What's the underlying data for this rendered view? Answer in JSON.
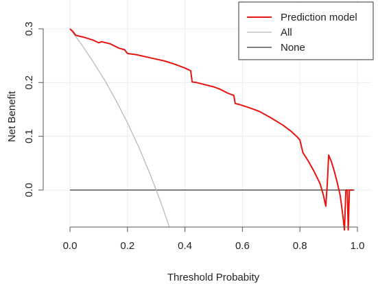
{
  "chart_data": {
    "type": "line",
    "xlabel": "Threshold Probabity",
    "ylabel": "Net Benefit",
    "xlim": [
      0,
      1
    ],
    "ylim": [
      -0.068,
      0.33
    ],
    "x_ticks": [
      0.0,
      0.2,
      0.4,
      0.6,
      0.8,
      1.0
    ],
    "x_tick_labels": [
      "0.0",
      "0.2",
      "0.4",
      "0.6",
      "0.8",
      "1.0"
    ],
    "y_ticks": [
      0.0,
      0.1,
      0.2,
      0.3
    ],
    "y_tick_labels": [
      "0.0",
      "0.1",
      "0.2",
      "0.3"
    ],
    "grid": true,
    "legend_position": "top-right",
    "series": [
      {
        "name": "Prediction model",
        "color": "#e8120f",
        "points": [
          [
            0.0,
            0.3
          ],
          [
            0.01,
            0.295
          ],
          [
            0.02,
            0.288
          ],
          [
            0.05,
            0.284
          ],
          [
            0.08,
            0.279
          ],
          [
            0.1,
            0.274
          ],
          [
            0.11,
            0.276
          ],
          [
            0.14,
            0.272
          ],
          [
            0.17,
            0.264
          ],
          [
            0.19,
            0.261
          ],
          [
            0.2,
            0.254
          ],
          [
            0.23,
            0.252
          ],
          [
            0.28,
            0.246
          ],
          [
            0.33,
            0.24
          ],
          [
            0.36,
            0.235
          ],
          [
            0.4,
            0.227
          ],
          [
            0.42,
            0.222
          ],
          [
            0.425,
            0.201
          ],
          [
            0.44,
            0.2
          ],
          [
            0.5,
            0.192
          ],
          [
            0.52,
            0.188
          ],
          [
            0.55,
            0.18
          ],
          [
            0.57,
            0.176
          ],
          [
            0.575,
            0.161
          ],
          [
            0.59,
            0.159
          ],
          [
            0.62,
            0.154
          ],
          [
            0.66,
            0.146
          ],
          [
            0.7,
            0.134
          ],
          [
            0.74,
            0.121
          ],
          [
            0.77,
            0.109
          ],
          [
            0.79,
            0.099
          ],
          [
            0.8,
            0.093
          ],
          [
            0.81,
            0.07
          ],
          [
            0.83,
            0.053
          ],
          [
            0.85,
            0.034
          ],
          [
            0.87,
            0.012
          ],
          [
            0.88,
            -0.006
          ],
          [
            0.89,
            -0.03
          ],
          [
            0.895,
            0.01
          ],
          [
            0.9,
            0.065
          ],
          [
            0.91,
            0.052
          ],
          [
            0.92,
            0.034
          ],
          [
            0.93,
            0.013
          ],
          [
            0.94,
            -0.01
          ],
          [
            0.95,
            -0.05
          ],
          [
            0.955,
            -0.075
          ],
          [
            0.96,
            0.0
          ],
          [
            0.965,
            0.0
          ],
          [
            0.968,
            -0.075
          ],
          [
            0.972,
            0.0
          ],
          [
            0.98,
            0.0
          ],
          [
            0.985,
            0.0
          ]
        ]
      },
      {
        "name": "All",
        "color": "#b4b4b4",
        "points": [
          [
            0.0,
            0.3
          ],
          [
            0.04,
            0.271
          ],
          [
            0.08,
            0.239
          ],
          [
            0.12,
            0.205
          ],
          [
            0.16,
            0.167
          ],
          [
            0.2,
            0.125
          ],
          [
            0.24,
            0.079
          ],
          [
            0.28,
            0.028
          ],
          [
            0.3,
            0.0
          ],
          [
            0.32,
            -0.029
          ],
          [
            0.345,
            -0.068
          ]
        ]
      },
      {
        "name": "None",
        "color": "#333333",
        "points": [
          [
            0.0,
            0.0
          ],
          [
            0.99,
            0.0
          ]
        ]
      }
    ]
  }
}
